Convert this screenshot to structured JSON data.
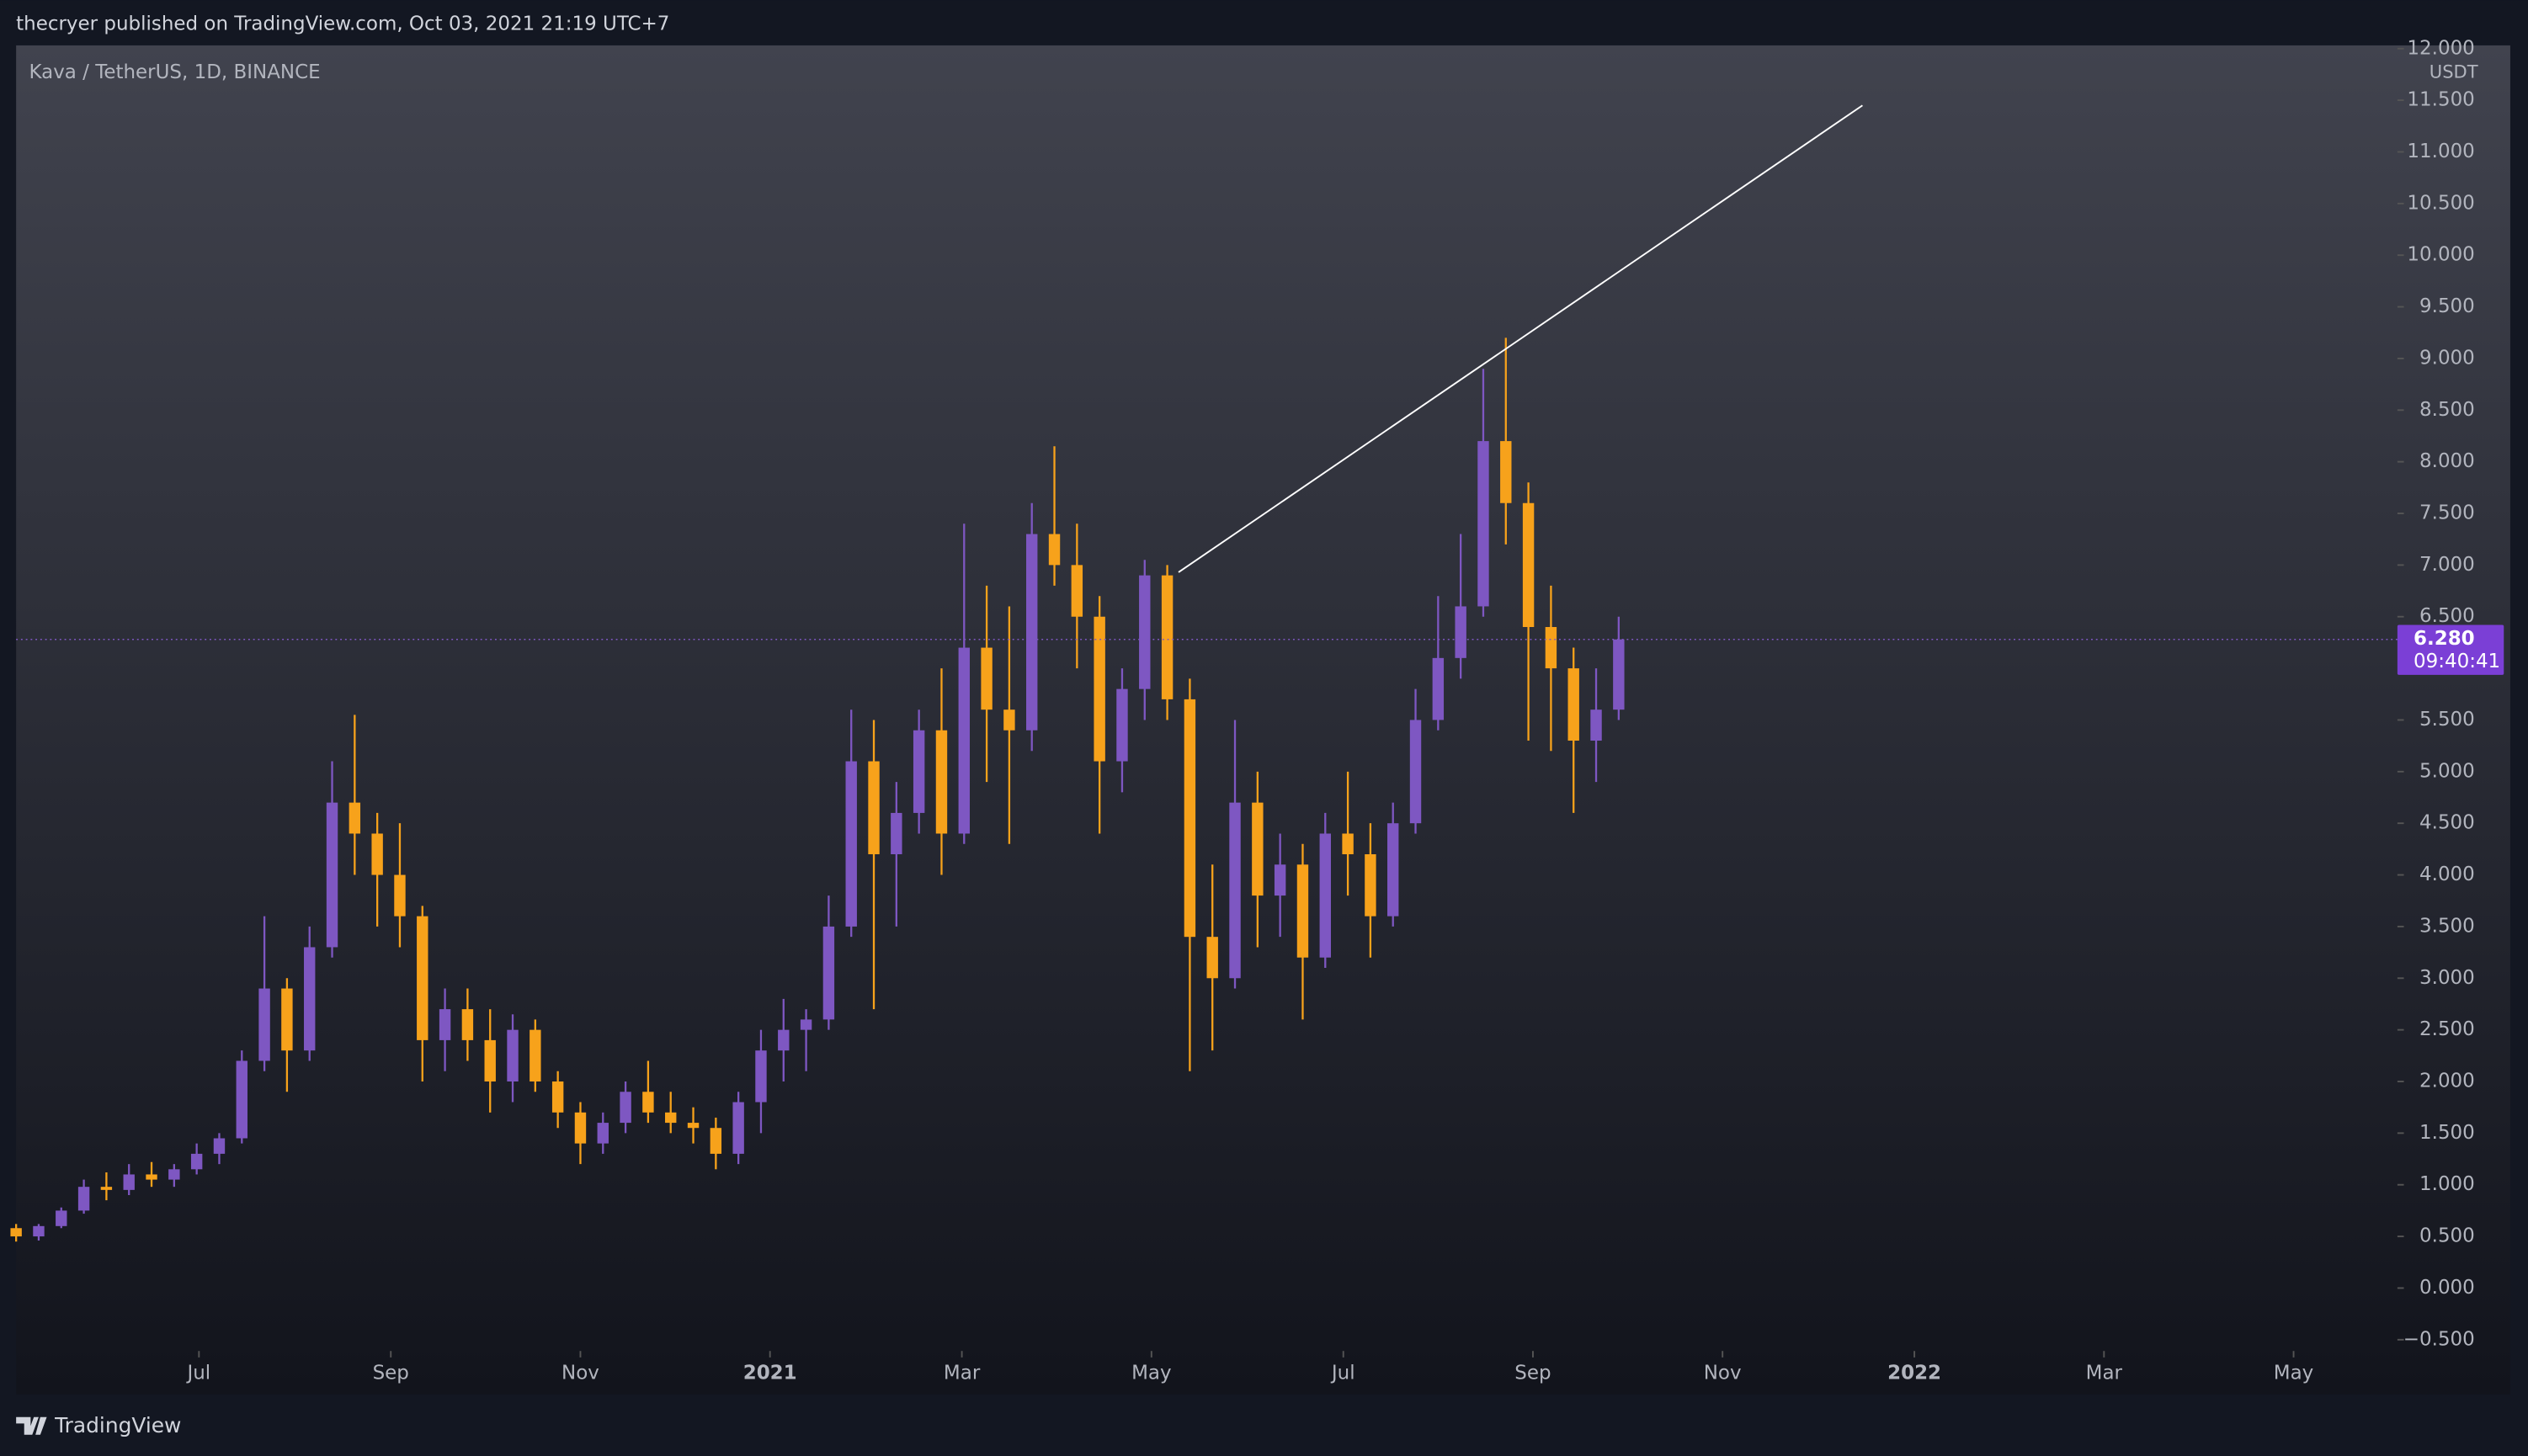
{
  "header": {
    "text": "thecryer published on TradingView.com, Oct 03, 2021 21:19 UTC+7"
  },
  "footer": {
    "brand": "TradingView"
  },
  "chart_data": {
    "type": "candlestick",
    "title": "Kava / TetherUS, 1D, BINANCE",
    "currency": "USDT",
    "up_color": "#7e57c2",
    "down_color": "#f7a21b",
    "xlim": [
      0,
      105.5
    ],
    "xticks": [
      {
        "value": 8.1,
        "label": "Jul"
      },
      {
        "value": 16.6,
        "label": "Sep"
      },
      {
        "value": 25.0,
        "label": "Nov"
      },
      {
        "value": 33.4,
        "label": "2021"
      },
      {
        "value": 41.9,
        "label": "Mar"
      },
      {
        "value": 50.3,
        "label": "May"
      },
      {
        "value": 58.8,
        "label": "Jul"
      },
      {
        "value": 67.2,
        "label": "Sep"
      },
      {
        "value": 75.6,
        "label": "Nov"
      },
      {
        "value": 84.1,
        "label": "2022"
      },
      {
        "value": 92.5,
        "label": "Mar"
      },
      {
        "value": 100.9,
        "label": "May"
      }
    ],
    "ylim": [
      -0.5,
      12
    ],
    "yticks": [
      {
        "value": -0.5,
        "label": "−0.500"
      },
      {
        "value": 0,
        "label": "0.000"
      },
      {
        "value": 0.5,
        "label": "0.500"
      },
      {
        "value": 1,
        "label": "1.000"
      },
      {
        "value": 1.5,
        "label": "1.500"
      },
      {
        "value": 2,
        "label": "2.000"
      },
      {
        "value": 2.5,
        "label": "2.500"
      },
      {
        "value": 3,
        "label": "3.000"
      },
      {
        "value": 3.5,
        "label": "3.500"
      },
      {
        "value": 4,
        "label": "4.000"
      },
      {
        "value": 4.5,
        "label": "4.500"
      },
      {
        "value": 5,
        "label": "5.000"
      },
      {
        "value": 5.5,
        "label": "5.500"
      },
      {
        "value": 6.5,
        "label": "6.500"
      },
      {
        "value": 7,
        "label": "7.000"
      },
      {
        "value": 7.5,
        "label": "7.500"
      },
      {
        "value": 8,
        "label": "8.000"
      },
      {
        "value": 8.5,
        "label": "8.500"
      },
      {
        "value": 9,
        "label": "9.000"
      },
      {
        "value": 9.5,
        "label": "9.500"
      },
      {
        "value": 10,
        "label": "10.000"
      },
      {
        "value": 10.5,
        "label": "10.500"
      },
      {
        "value": 11,
        "label": "11.000"
      },
      {
        "value": 11.5,
        "label": "11.500"
      },
      {
        "value": 12,
        "label": "12.000"
      }
    ],
    "open": [
      0.58,
      0.5,
      0.6,
      0.75,
      0.98,
      0.95,
      1.1,
      1.05,
      1.15,
      1.3,
      1.45,
      2.2,
      2.9,
      2.3,
      3.3,
      4.7,
      4.4,
      4.0,
      3.6,
      2.4,
      2.7,
      2.4,
      2.0,
      2.5,
      2.0,
      1.7,
      1.4,
      1.6,
      1.9,
      1.7,
      1.6,
      1.55,
      1.3,
      1.8,
      2.3,
      2.5,
      2.6,
      3.5,
      5.1,
      4.2,
      4.6,
      5.4,
      4.4,
      6.2,
      5.6,
      5.4,
      7.3,
      7.0,
      6.5,
      5.1,
      5.8,
      6.9,
      5.7,
      3.4,
      3.0,
      4.7,
      3.8,
      4.1,
      3.2,
      4.4,
      4.2,
      3.6,
      4.5,
      5.5,
      6.1,
      6.6,
      8.2,
      7.6,
      6.4,
      6.0,
      5.3,
      5.6
    ],
    "high": [
      0.62,
      0.62,
      0.78,
      1.05,
      1.12,
      1.2,
      1.22,
      1.2,
      1.4,
      1.5,
      2.3,
      3.6,
      3.0,
      3.5,
      5.1,
      5.55,
      4.6,
      4.5,
      3.7,
      2.9,
      2.9,
      2.7,
      2.65,
      2.6,
      2.1,
      1.8,
      1.7,
      2.0,
      2.2,
      1.9,
      1.75,
      1.65,
      1.9,
      2.5,
      2.8,
      2.7,
      3.8,
      5.6,
      5.5,
      4.9,
      5.6,
      6.0,
      7.4,
      6.8,
      6.6,
      7.6,
      8.15,
      7.4,
      6.7,
      6.0,
      7.05,
      7.0,
      5.9,
      4.1,
      5.5,
      5.0,
      4.4,
      4.3,
      4.6,
      5.0,
      4.5,
      4.7,
      5.8,
      6.7,
      7.3,
      8.9,
      9.2,
      7.8,
      6.8,
      6.2,
      6.0,
      6.5
    ],
    "low": [
      0.45,
      0.46,
      0.58,
      0.72,
      0.85,
      0.9,
      0.98,
      0.98,
      1.1,
      1.2,
      1.4,
      2.1,
      1.9,
      2.2,
      3.2,
      4.0,
      3.5,
      3.3,
      2.0,
      2.1,
      2.2,
      1.7,
      1.8,
      1.9,
      1.55,
      1.2,
      1.3,
      1.5,
      1.6,
      1.5,
      1.4,
      1.15,
      1.2,
      1.5,
      2.0,
      2.1,
      2.5,
      3.4,
      2.7,
      3.5,
      4.4,
      4.0,
      4.3,
      4.9,
      4.3,
      5.2,
      6.8,
      6.0,
      4.4,
      4.8,
      5.5,
      5.5,
      2.1,
      2.3,
      2.9,
      3.3,
      3.4,
      2.6,
      3.1,
      3.8,
      3.2,
      3.5,
      4.4,
      5.4,
      5.9,
      6.5,
      7.2,
      5.3,
      5.2,
      4.6,
      4.9,
      5.5
    ],
    "close": [
      0.5,
      0.6,
      0.75,
      0.98,
      0.95,
      1.1,
      1.05,
      1.15,
      1.3,
      1.45,
      2.2,
      2.9,
      2.3,
      3.3,
      4.7,
      4.4,
      4.0,
      3.6,
      2.4,
      2.7,
      2.4,
      2.0,
      2.5,
      2.0,
      1.7,
      1.4,
      1.6,
      1.9,
      1.7,
      1.6,
      1.55,
      1.3,
      1.8,
      2.3,
      2.5,
      2.6,
      3.5,
      5.1,
      4.2,
      4.6,
      5.4,
      4.4,
      6.2,
      5.6,
      5.4,
      7.3,
      7.0,
      6.5,
      5.1,
      5.8,
      6.9,
      5.7,
      3.4,
      3.0,
      4.7,
      3.8,
      4.1,
      3.2,
      4.4,
      4.2,
      3.6,
      4.5,
      5.5,
      6.1,
      6.6,
      8.2,
      7.6,
      6.4,
      6.0,
      5.3,
      5.6,
      6.28
    ],
    "trendline": {
      "x": [
        51.5,
        81.8
      ],
      "y": [
        6.93,
        11.45
      ]
    },
    "last_price": {
      "value": 6.28,
      "label": "6.280"
    },
    "countdown": "09:40:41"
  }
}
